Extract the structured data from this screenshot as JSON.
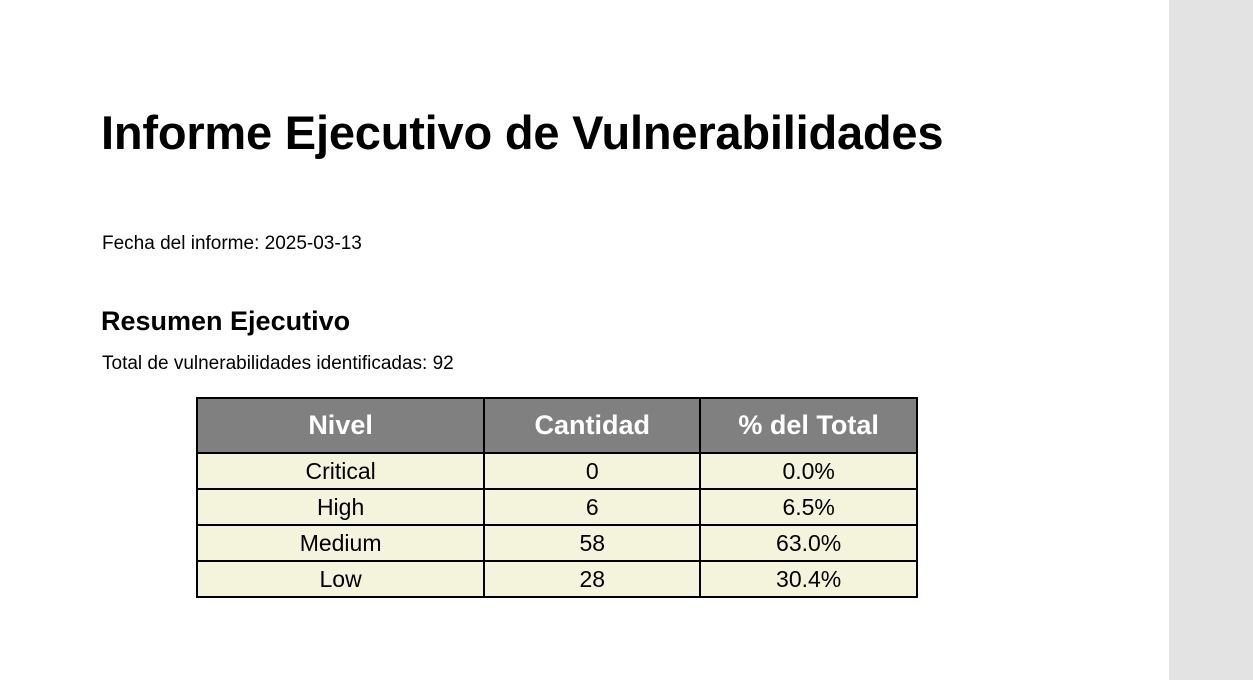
{
  "report": {
    "title": "Informe Ejecutivo de Vulnerabilidades",
    "date_line": "Fecha del informe: 2025-03-13",
    "summary_heading": "Resumen Ejecutivo",
    "total_line": "Total de vulnerabilidades identificadas: 92"
  },
  "table": {
    "headers": [
      "Nivel",
      "Cantidad",
      "% del Total"
    ],
    "rows": [
      [
        "Critical",
        "0",
        "0.0%"
      ],
      [
        "High",
        "6",
        "6.5%"
      ],
      [
        "Medium",
        "58",
        "63.0%"
      ],
      [
        "Low",
        "28",
        "30.4%"
      ]
    ]
  },
  "colors": {
    "header_bg": "#808080",
    "header_text": "#ffffff",
    "cell_bg": "#f4f3dc",
    "gutter_bg": "#e3e3e3"
  }
}
